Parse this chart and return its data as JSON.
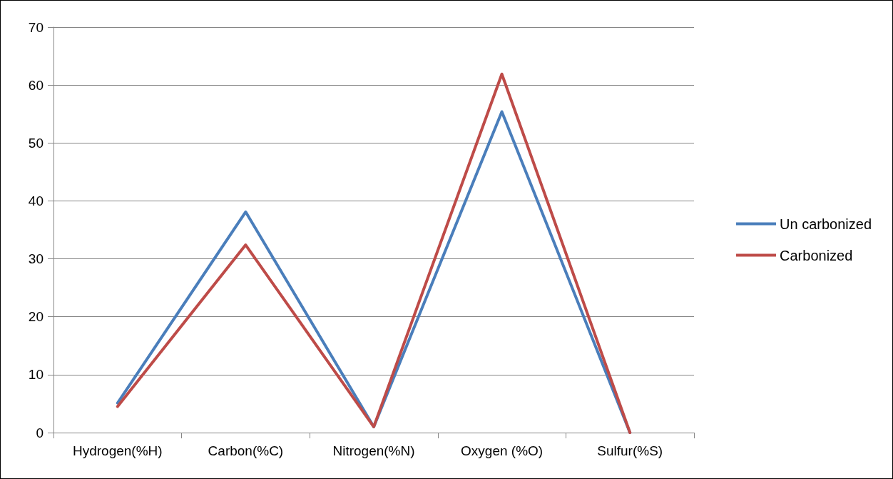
{
  "chart_data": {
    "type": "line",
    "categories": [
      "Hydrogen(%H)",
      "Carbon(%C)",
      "Nitrogen(%N)",
      "Oxygen (%O)",
      "Sulfur(%S)"
    ],
    "series": [
      {
        "name": "Un carbonized",
        "color": "#4a7ebb",
        "values": [
          5.1,
          38.1,
          1.0,
          55.4,
          0
        ]
      },
      {
        "name": "Carbonized",
        "color": "#be4b48",
        "values": [
          4.5,
          32.4,
          1.0,
          61.9,
          0
        ]
      }
    ],
    "ylim": [
      0,
      70
    ],
    "yticks": [
      0,
      10,
      20,
      30,
      40,
      50,
      60,
      70
    ],
    "grid": "y",
    "legend": "right",
    "marker": "none",
    "line_style": "solid"
  }
}
